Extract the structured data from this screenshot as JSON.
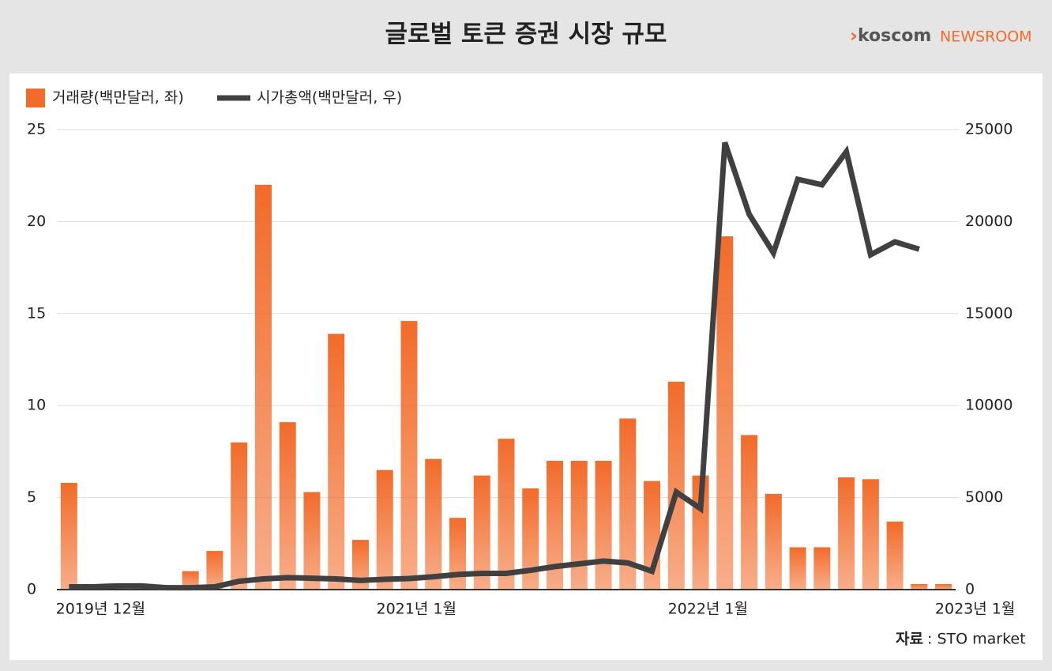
{
  "chart_data": {
    "type": "bar_line",
    "title": "글로벌 토큰 증권 시장 규모",
    "brand": "koscom",
    "brand_suffix": "NEWSROOM",
    "source_label": "자료",
    "source": ": STO market",
    "categories": [
      "2019년 12월",
      null,
      null,
      null,
      null,
      null,
      null,
      null,
      null,
      null,
      null,
      null,
      null,
      "2021년 1월",
      null,
      null,
      null,
      null,
      null,
      null,
      null,
      null,
      null,
      null,
      null,
      "2022년 1월",
      null,
      null,
      null,
      null,
      null,
      null,
      null,
      null,
      null,
      null,
      "2023년 1월"
    ],
    "series": [
      {
        "name": "거래량(백만달러, 좌)",
        "color": "#f26b2a",
        "axis": "y",
        "values": [
          5.8,
          0.1,
          0.2,
          0.3,
          0.1,
          1.0,
          2.1,
          8.0,
          22.0,
          9.1,
          5.3,
          13.9,
          2.7,
          6.5,
          14.6,
          7.1,
          3.9,
          6.2,
          8.2,
          5.5,
          7.0,
          7.0,
          7.0,
          9.3,
          5.9,
          11.3,
          6.2,
          19.2,
          8.4,
          5.2,
          2.3,
          2.3,
          6.1,
          6.0,
          3.7,
          0.3,
          0.3
        ]
      },
      {
        "name": "시가총액(백만달러, 우)",
        "color": "#404040",
        "axis": "y2",
        "values": [
          150,
          150,
          200,
          200,
          100,
          100,
          150,
          450,
          580,
          650,
          620,
          580,
          500,
          560,
          600,
          700,
          820,
          880,
          880,
          1050,
          1250,
          1400,
          1550,
          1450,
          1000,
          5300,
          4400,
          24300,
          20400,
          18300,
          22300,
          22000,
          23800,
          18200,
          18900,
          18500,
          null
        ]
      }
    ],
    "ylim": [
      0,
      25
    ],
    "yticks": [
      0,
      5,
      10,
      15,
      20,
      25
    ],
    "y2lim": [
      0,
      25000
    ],
    "y2ticks": [
      0,
      5000,
      10000,
      15000,
      20000,
      25000
    ],
    "grid": true
  }
}
